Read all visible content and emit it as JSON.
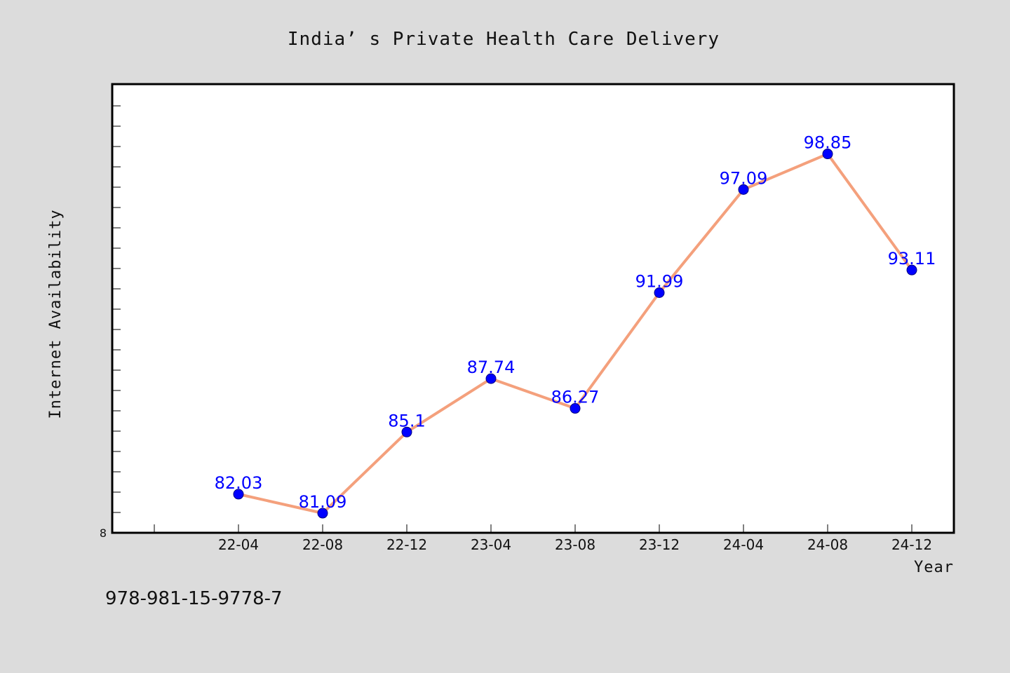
{
  "chart_data": {
    "type": "line",
    "title": "India’ s Private Health Care Delivery",
    "xlabel": "Year",
    "ylabel": "Internet Availability",
    "categories": [
      "22-04",
      "22-08",
      "22-12",
      "23-04",
      "23-08",
      "23-12",
      "24-04",
      "24-08",
      "24-12"
    ],
    "series": [
      {
        "values": [
          82.03,
          81.09,
          85.1,
          87.74,
          86.27,
          91.99,
          97.09,
          98.85,
          93.11
        ],
        "labels": [
          "82.03",
          "81.09",
          "85.1",
          "87.74",
          "86.27",
          "91.99",
          "97.09",
          "98.85",
          "93.11"
        ]
      }
    ],
    "ytick_labels": [
      "8"
    ],
    "ylim": [
      80.12,
      102.3
    ],
    "grid": false,
    "legend": "none",
    "colors": {
      "background": "#dcdcdc",
      "plot_background": "#ffffff",
      "line": "#f4a07c",
      "marker": "#0000ff",
      "data_label": "#0000ff",
      "axis": "#000000"
    }
  },
  "footer": {
    "isbn": "978-981-15-9778-7"
  }
}
